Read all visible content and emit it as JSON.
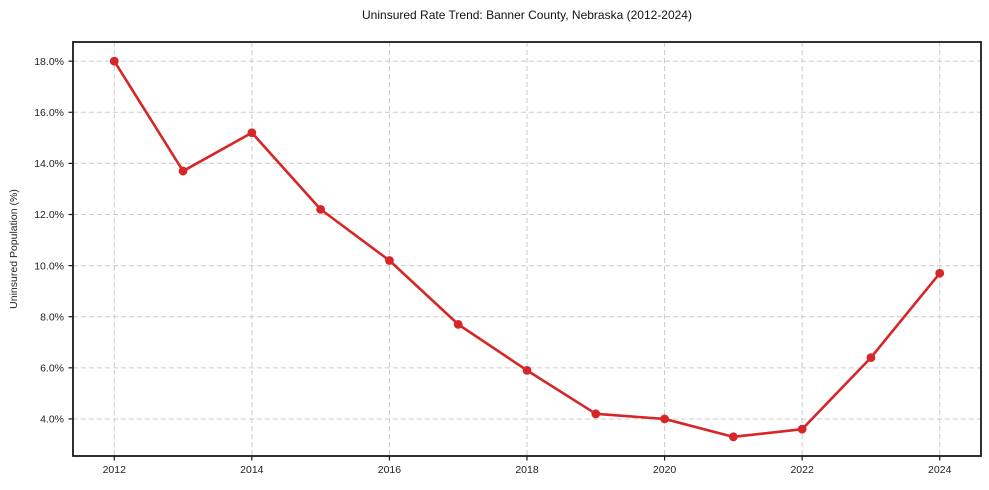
{
  "chart_data": {
    "type": "line",
    "title": "Uninsured Rate Trend: Banner County, Nebraska (2012-2024)",
    "xlabel": "",
    "ylabel": "Uninsured Population (%)",
    "x": [
      2012,
      2013,
      2014,
      2015,
      2016,
      2017,
      2018,
      2019,
      2020,
      2021,
      2022,
      2023,
      2024
    ],
    "series": [
      {
        "name": "Uninsured Rate",
        "values": [
          18.0,
          13.7,
          15.2,
          12.2,
          10.2,
          7.7,
          5.9,
          4.2,
          4.0,
          3.3,
          3.6,
          6.4,
          9.7
        ],
        "color": "#d62728",
        "marker": "circle"
      }
    ],
    "xticks": [
      2012,
      2014,
      2016,
      2018,
      2020,
      2022,
      2024
    ],
    "yticks": [
      4,
      6,
      8,
      10,
      12,
      14,
      16,
      18
    ],
    "ytick_labels": [
      "4.0%",
      "6.0%",
      "8.0%",
      "10.0%",
      "12.0%",
      "14.0%",
      "16.0%",
      "18.0%"
    ],
    "xlim": [
      2011.4,
      2024.6
    ],
    "ylim": [
      2.55,
      18.75
    ],
    "grid": true,
    "legend": "none",
    "colors": {
      "line": "#d62728",
      "grid": "#cccccc",
      "axis": "#1a1a1a",
      "tick_text": "#222222",
      "title_text": "#111111",
      "background": "#ffffff"
    }
  }
}
